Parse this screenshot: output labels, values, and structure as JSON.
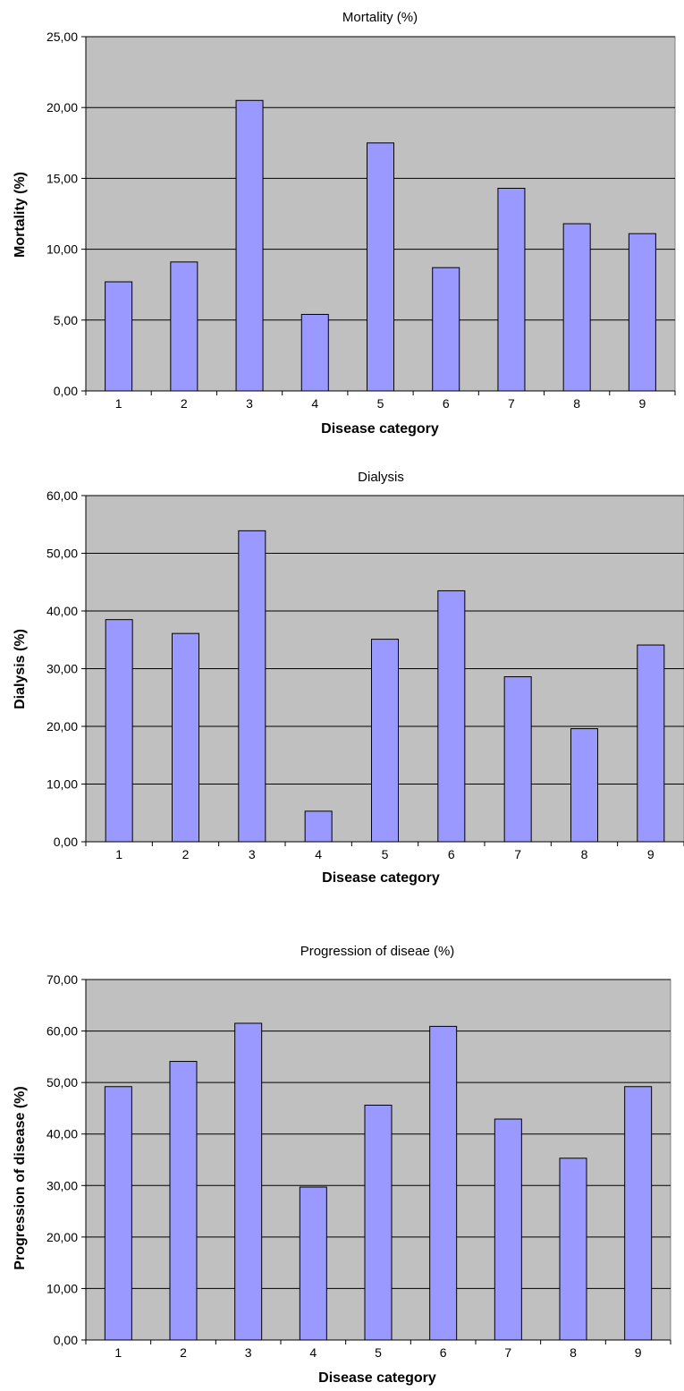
{
  "chart_data": [
    {
      "type": "bar",
      "title": "Mortality (%)",
      "xlabel": "Disease category",
      "ylabel": "Mortality (%)",
      "categories": [
        "1",
        "2",
        "3",
        "4",
        "5",
        "6",
        "7",
        "8",
        "9"
      ],
      "values": [
        7.7,
        9.1,
        20.5,
        5.4,
        17.5,
        8.7,
        14.3,
        11.8,
        11.1
      ],
      "ylim": [
        0,
        25
      ],
      "yticks": [
        "0,00",
        "5,00",
        "10,00",
        "15,00",
        "20,00",
        "25,00"
      ],
      "plot_bg": "#c0c0c0",
      "bar_color": "#9999ff",
      "grid": true
    },
    {
      "type": "bar",
      "title": "Dialysis",
      "xlabel": "Disease category",
      "ylabel": "Dialysis (%)",
      "categories": [
        "1",
        "2",
        "3",
        "4",
        "5",
        "6",
        "7",
        "8",
        "9"
      ],
      "values": [
        38.5,
        36.1,
        53.9,
        5.3,
        35.1,
        43.5,
        28.6,
        19.6,
        34.1
      ],
      "ylim": [
        0,
        60
      ],
      "yticks": [
        "0,00",
        "10,00",
        "20,00",
        "30,00",
        "40,00",
        "50,00",
        "60,00"
      ],
      "plot_bg": "#c0c0c0",
      "bar_color": "#9999ff",
      "grid": true
    },
    {
      "type": "bar",
      "title": "Progression of diseae (%)",
      "xlabel": "Disease category",
      "ylabel": "Progression of disease (%)",
      "categories": [
        "1",
        "2",
        "3",
        "4",
        "5",
        "6",
        "7",
        "8",
        "9"
      ],
      "values": [
        49.2,
        54.1,
        61.5,
        29.7,
        45.6,
        60.9,
        42.9,
        35.3,
        49.2
      ],
      "ylim": [
        0,
        70
      ],
      "yticks": [
        "0,00",
        "10,00",
        "20,00",
        "30,00",
        "40,00",
        "50,00",
        "60,00",
        "70,00"
      ],
      "plot_bg": "#c0c0c0",
      "bar_color": "#9999ff",
      "grid": true
    }
  ]
}
